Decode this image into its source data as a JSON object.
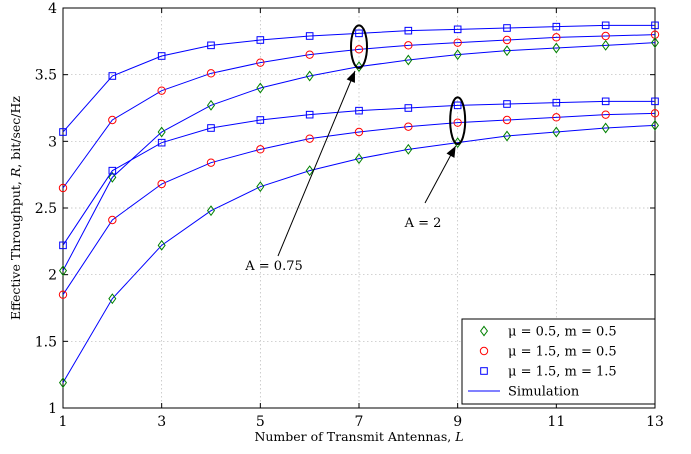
{
  "chart_data": {
    "type": "line",
    "xlabel_main": "Number of Transmit Antennas, ",
    "xlabel_sym": "L",
    "ylabel_main": "Effective Throughput, ",
    "ylabel_sym": "R",
    "ylabel_unit": ", bit/sec/Hz",
    "xlim": [
      1,
      13
    ],
    "ylim": [
      1,
      4
    ],
    "x_ticks": [
      1,
      3,
      5,
      7,
      9,
      11,
      13
    ],
    "y_ticks": [
      1,
      1.5,
      2,
      2.5,
      3,
      3.5,
      4
    ],
    "grid": true,
    "legend_position": "bottom-right",
    "legend": [
      {
        "label": "μ = 0.5, m = 0.5",
        "marker": "diamond",
        "color": "#008000"
      },
      {
        "label": "μ = 1.5, m = 0.5",
        "marker": "circle",
        "color": "#ff0000"
      },
      {
        "label": "μ = 1.5, m = 1.5",
        "marker": "square",
        "color": "#0000ff"
      },
      {
        "label": "Simulation",
        "marker": "line",
        "color": "#0000ff"
      }
    ],
    "x": [
      1,
      2,
      3,
      4,
      5,
      6,
      7,
      8,
      9,
      10,
      11,
      12,
      13
    ],
    "series": [
      {
        "group": "A = 0.75",
        "marker": "square",
        "color": "#0000ff",
        "values": [
          3.07,
          3.49,
          3.64,
          3.72,
          3.76,
          3.79,
          3.81,
          3.83,
          3.84,
          3.85,
          3.86,
          3.87,
          3.87
        ]
      },
      {
        "group": "A = 0.75",
        "marker": "circle",
        "color": "#ff0000",
        "values": [
          2.65,
          3.16,
          3.38,
          3.51,
          3.59,
          3.65,
          3.69,
          3.72,
          3.74,
          3.76,
          3.78,
          3.79,
          3.8
        ]
      },
      {
        "group": "A = 0.75",
        "marker": "diamond",
        "color": "#008000",
        "values": [
          2.03,
          2.73,
          3.07,
          3.27,
          3.4,
          3.49,
          3.56,
          3.61,
          3.65,
          3.68,
          3.7,
          3.72,
          3.74
        ]
      },
      {
        "group": "A = 2",
        "marker": "square",
        "color": "#0000ff",
        "values": [
          2.22,
          2.78,
          2.99,
          3.1,
          3.16,
          3.2,
          3.23,
          3.25,
          3.27,
          3.28,
          3.29,
          3.3,
          3.3
        ]
      },
      {
        "group": "A = 2",
        "marker": "circle",
        "color": "#ff0000",
        "values": [
          1.85,
          2.41,
          2.68,
          2.84,
          2.94,
          3.02,
          3.07,
          3.11,
          3.14,
          3.16,
          3.18,
          3.2,
          3.21
        ]
      },
      {
        "group": "A = 2",
        "marker": "diamond",
        "color": "#008000",
        "values": [
          1.19,
          1.82,
          2.22,
          2.48,
          2.66,
          2.78,
          2.87,
          2.94,
          2.99,
          3.04,
          3.07,
          3.1,
          3.12
        ]
      }
    ],
    "annotations": [
      {
        "text": "A = 0.75",
        "ellipse_x": 7,
        "ellipse_y": [
          3.55,
          3.87
        ]
      },
      {
        "text": "A = 2",
        "ellipse_x": 9,
        "ellipse_y": [
          2.98,
          3.33
        ]
      }
    ],
    "line_color": "#0000ff"
  }
}
